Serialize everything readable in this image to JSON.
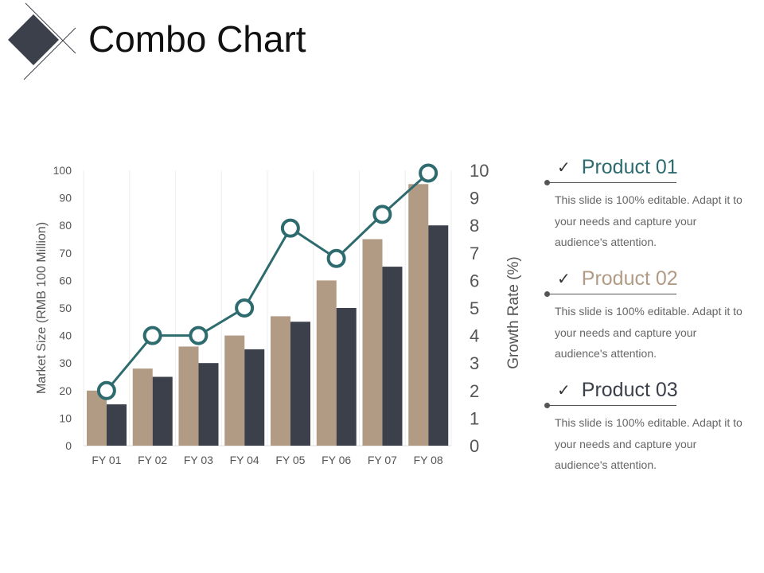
{
  "title": "Combo Chart",
  "chart_data": {
    "type": "bar+line",
    "categories": [
      "FY 01",
      "FY 02",
      "FY 03",
      "FY 04",
      "FY 05",
      "FY 06",
      "FY 07",
      "FY 08"
    ],
    "series": [
      {
        "type": "bar",
        "axis": "left",
        "color": "#b29b84",
        "values": [
          20,
          28,
          36,
          40,
          47,
          60,
          75,
          95
        ]
      },
      {
        "type": "bar",
        "axis": "left",
        "color": "#3b404b",
        "values": [
          15,
          25,
          30,
          35,
          45,
          50,
          65,
          80
        ]
      },
      {
        "type": "line",
        "axis": "right",
        "color": "#2e6b6e",
        "values": [
          2,
          4,
          4,
          5,
          7.9,
          6.8,
          8.4,
          9.9
        ]
      }
    ],
    "ylabel": "Market Size (RMB 100 Million)",
    "y2label": "Growth Rate (%)",
    "ylim": [
      0,
      100
    ],
    "y2lim": [
      0,
      10
    ],
    "yticks": [
      0,
      10,
      20,
      30,
      40,
      50,
      60,
      70,
      80,
      90,
      100
    ],
    "y2ticks": [
      0,
      1,
      2,
      3,
      4,
      5,
      6,
      7,
      8,
      9,
      10
    ],
    "grid": "vertical"
  },
  "products": [
    {
      "name": "Product 01",
      "color": "#2e6b6e",
      "desc": "This slide is 100% editable. Adapt it to your needs and capture your audience's attention."
    },
    {
      "name": "Product 02",
      "color": "#b29b84",
      "desc": "This slide is 100% editable. Adapt it to your needs and capture your audience's attention."
    },
    {
      "name": "Product 03",
      "color": "#3b404b",
      "desc": "This slide is 100% editable. Adapt it to your needs and capture your audience's attention."
    }
  ]
}
